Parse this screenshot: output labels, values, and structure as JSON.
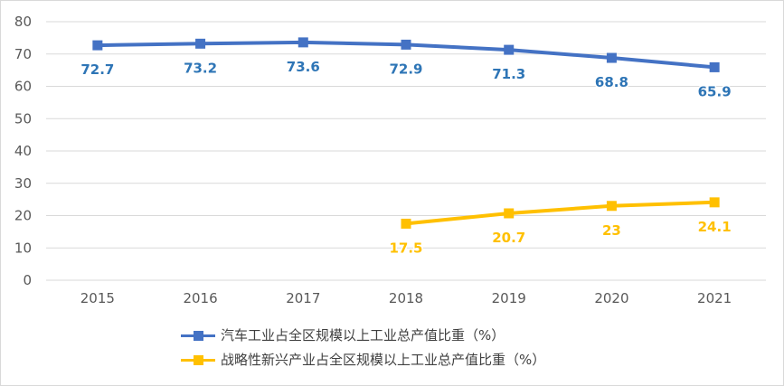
{
  "chart_data": {
    "type": "line",
    "categories": [
      "2015",
      "2016",
      "2017",
      "2018",
      "2019",
      "2020",
      "2021"
    ],
    "ylim": [
      0,
      80
    ],
    "yticks": [
      "0",
      "10",
      "20",
      "30",
      "40",
      "50",
      "60",
      "70",
      "80"
    ],
    "grid": true,
    "legend_position": "bottom",
    "series": [
      {
        "name": "汽车工业占全区规模以上工业总产值比重（%）",
        "color": "#4472C4",
        "label_color": "#2E75B6",
        "values": [
          72.7,
          73.2,
          73.6,
          72.9,
          71.3,
          68.8,
          65.9
        ],
        "labels": [
          "72.7",
          "73.2",
          "73.6",
          "72.9",
          "71.3",
          "68.8",
          "65.9"
        ]
      },
      {
        "name": "战略性新兴产业占全区规模以上工业总产值比重（%）",
        "color": "#FFC000",
        "label_color": "#FFC000",
        "values": [
          null,
          null,
          null,
          17.5,
          20.7,
          23,
          24.1
        ],
        "labels": [
          "",
          "",
          "",
          "17.5",
          "20.7",
          "23",
          "24.1"
        ]
      }
    ]
  }
}
